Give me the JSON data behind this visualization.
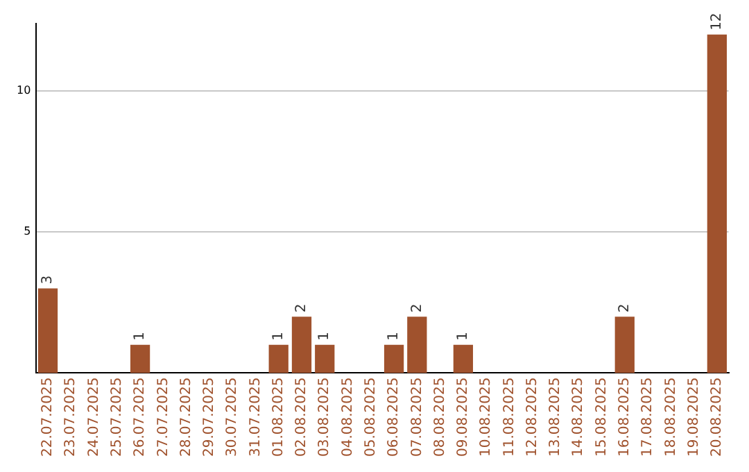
{
  "chart_data": {
    "type": "bar",
    "categories": [
      "22.07.2025",
      "23.07.2025",
      "24.07.2025",
      "25.07.2025",
      "26.07.2025",
      "27.07.2025",
      "28.07.2025",
      "29.07.2025",
      "30.07.2025",
      "31.07.2025",
      "01.08.2025",
      "02.08.2025",
      "03.08.2025",
      "04.08.2025",
      "05.08.2025",
      "06.08.2025",
      "07.08.2025",
      "08.08.2025",
      "09.08.2025",
      "10.08.2025",
      "11.08.2025",
      "12.08.2025",
      "13.08.2025",
      "14.08.2025",
      "15.08.2025",
      "16.08.2025",
      "17.08.2025",
      "18.08.2025",
      "19.08.2025",
      "20.08.2025"
    ],
    "values": [
      3,
      0,
      0,
      0,
      1,
      0,
      0,
      0,
      0,
      0,
      1,
      2,
      1,
      0,
      0,
      1,
      2,
      0,
      1,
      0,
      0,
      0,
      0,
      0,
      0,
      2,
      0,
      0,
      0,
      12
    ],
    "value_labels": [
      "3",
      null,
      null,
      null,
      "1",
      null,
      null,
      null,
      null,
      null,
      "1",
      "2",
      "1",
      null,
      null,
      "1",
      "2",
      null,
      "1",
      null,
      null,
      null,
      null,
      null,
      null,
      "2",
      null,
      null,
      null,
      "12"
    ],
    "color": "#a0522d",
    "ylim": [
      0,
      12.4
    ],
    "yticks": [
      5,
      10
    ],
    "grid": "y",
    "legend": false
  }
}
